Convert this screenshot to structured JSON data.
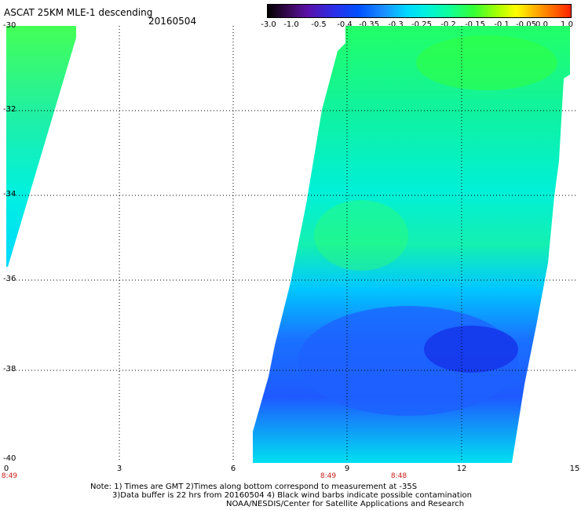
{
  "header": {
    "title": "ASCAT 25KM MLE-1 descending",
    "date": "20160504"
  },
  "colorbar": {
    "labels": [
      "-3.0",
      "-1.0",
      "-0.5",
      "-0.4",
      "-0.35",
      "-0.3",
      "-0.25",
      "-0.2",
      "-0.15",
      "-0.1",
      "-0.05",
      "0.0",
      "1.0"
    ],
    "colors": [
      "#000000",
      "#5a10a8",
      "#0050ff",
      "#1a8cff",
      "#00d8ff",
      "#10ff9a",
      "#33ff33",
      "#ffff00",
      "#ff2200"
    ]
  },
  "axes": {
    "lat_labels": [
      "-30",
      "-32",
      "-34",
      "-36",
      "-38",
      "-40"
    ],
    "lon_labels": [
      "0",
      "3",
      "6",
      "9",
      "12",
      "15"
    ],
    "time_labels": [
      "8:49",
      "8:49",
      "8:48"
    ]
  },
  "notes": [
    "Note: 1) Times are GMT 2)Times along bottom correspond to measurement at -35S",
    "3)Data buffer is 22 hrs from 20160504 4) Black wind barbs indicate possible contamination",
    "NOAA/NESDIS/Center for Satellite Applications and Research"
  ]
}
